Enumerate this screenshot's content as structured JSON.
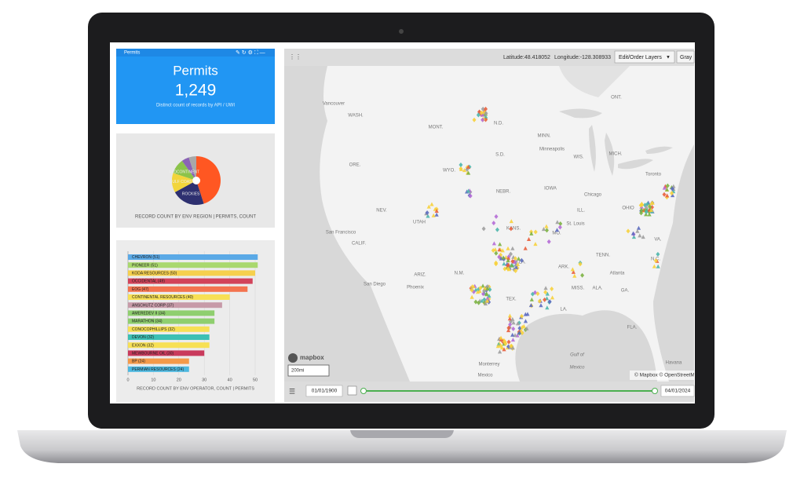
{
  "permits_widget": {
    "header": "Permits",
    "title": "Permits",
    "value": "1,249",
    "subtitle": "Distinct count of records by API / UWI"
  },
  "region_chart": {
    "type": "pie",
    "caption": "RECORD COUNT BY ENV REGION | PERMITS, COUNT",
    "categories": [
      null,
      "ROCKIES",
      "GULF COAST",
      "MIDCONTINENT",
      null,
      null
    ],
    "values": [
      45,
      22,
      13,
      10,
      5,
      5
    ],
    "colors": [
      "#ff5722",
      "#2e3070",
      "#f2d53c",
      "#8bc34a",
      "#8a63b5",
      "#a8a8a8"
    ]
  },
  "operator_chart": {
    "type": "bar",
    "caption": "RECORD COUNT BY ENV OPERATOR, COUNT | PERMITS",
    "categories": [
      "CHEVRON (51)",
      "PIONEER (51)",
      "KODA RESOURCES (50)",
      "OCCIDENTAL (49)",
      "EOG (47)",
      "CONTINENTAL RESOURCES (40)",
      "ANSCHUTZ CORP (37)",
      "AMEREDEV II (34)",
      "MARATHON (34)",
      "CONOCOPHILLIPS (32)",
      "DEVON (32)",
      "EXXON (32)",
      "MEWBOURNE OIL (30)",
      "BP (24)",
      "PERMIAN RESOURCES (24)"
    ],
    "values": [
      51,
      51,
      50,
      49,
      47,
      40,
      37,
      34,
      34,
      32,
      32,
      32,
      30,
      24,
      24
    ],
    "colors": [
      "#5aa9e6",
      "#a9d86e",
      "#f6d04d",
      "#d2435a",
      "#f4734f",
      "#f7e055",
      "#c79aa8",
      "#8fcf6f",
      "#8fcf6f",
      "#f7e055",
      "#3cc0b4",
      "#f7e055",
      "#c93a5c",
      "#f49a4a",
      "#4cb8e0"
    ],
    "xlim": [
      0,
      50
    ],
    "xticks": [
      0,
      10,
      20,
      30,
      40,
      50
    ]
  },
  "map": {
    "latitude": "Latitude:48.418052",
    "longitude": "Longitude:-128.308933",
    "layers_button": "Edit/Order Layers",
    "basemap_button": "Gray",
    "labels": [
      "Vancouver",
      "WASH.",
      "MONT.",
      "N.D.",
      "ONT.",
      "ORE.",
      "WYO.",
      "S.D.",
      "MINN.",
      "Minneapolis",
      "WIS.",
      "MICH.",
      "Toronto",
      "NEBR.",
      "IOWA",
      "Chicago",
      "NEV.",
      "UTAH",
      "ILL.",
      "OHIO",
      "KANS.",
      "MO.",
      "St. Louis",
      "San Francisco",
      "CALIF.",
      "VA.",
      "TENN.",
      "N.C.",
      "ARIZ.",
      "N.M.",
      "OKLA.",
      "ARK.",
      "Atlanta",
      "San Diego",
      "Phoenix",
      "MISS.",
      "ALA.",
      "GA.",
      "TEX.",
      "LA.",
      "FLA.",
      "Monterrey",
      "Gulf of",
      "Mexico",
      "Mexico",
      "Havana"
    ],
    "logo": "mapbox",
    "scale": "200mi",
    "attribution": "© Mapbox © OpenStreetM"
  },
  "timeline": {
    "start": "01/01/1900",
    "end": "04/01/2024"
  }
}
